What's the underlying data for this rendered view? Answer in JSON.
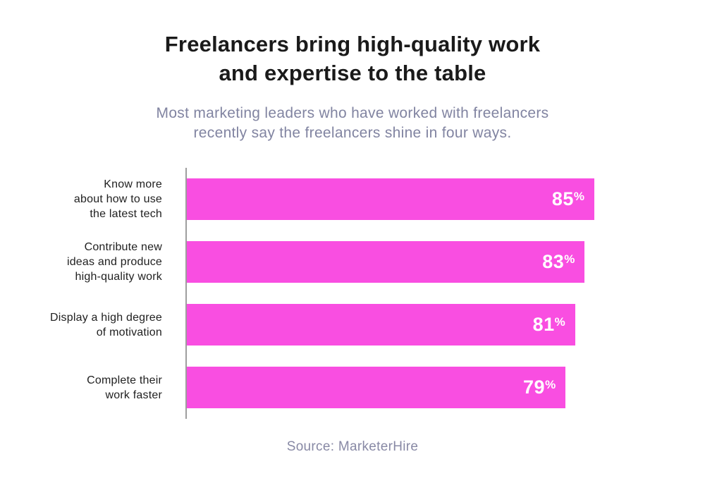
{
  "header": {
    "title_line1": "Freelancers bring high-quality work",
    "title_line2": "and expertise to the table",
    "subtitle_line1": "Most marketing leaders who have worked with freelancers",
    "subtitle_line2": "recently say the freelancers shine in four ways."
  },
  "chart_data": {
    "type": "bar",
    "orientation": "horizontal",
    "title": "Freelancers bring high-quality work and expertise to the table",
    "subtitle": "Most marketing leaders who have worked with freelancers recently say the freelancers shine in four ways.",
    "categories": [
      "Know more about how to use the latest tech",
      "Contribute new ideas and produce high-quality work",
      "Display a high degree of motivation",
      "Complete their work faster"
    ],
    "category_lines": [
      "Know more\nabout how to use\nthe latest tech",
      "Contribute new\nideas and produce\nhigh-quality work",
      "Display a high degree\nof motivation",
      "Complete their\nwork faster"
    ],
    "values": [
      85,
      83,
      81,
      79
    ],
    "value_suffix": "%",
    "xlim": [
      0,
      100
    ],
    "grid": false,
    "legend": false,
    "bar_color": "#f94ee1",
    "value_label_color": "#ffffff",
    "axis_line_color": "#9e9e9e",
    "title_color": "#1a1a1a",
    "subtitle_color": "#8184a1"
  },
  "footer": {
    "source": "Source: MarketerHire"
  }
}
